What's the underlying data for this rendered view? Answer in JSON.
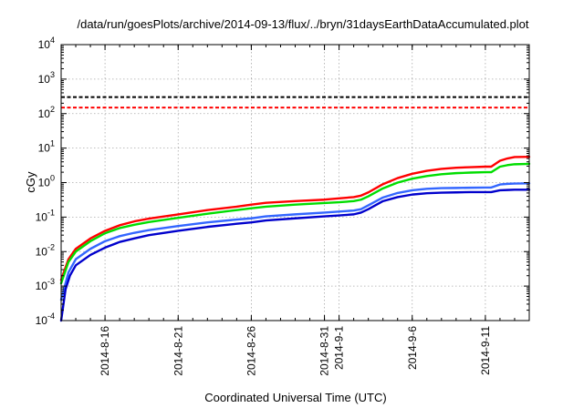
{
  "chart_data": {
    "type": "line",
    "title": "/data/run/goesPlots/archive/2014-09-13/flux/../bryn/31daysEarthDataAccumulated.plot",
    "xlabel": "Coordinated Universal Time (UTC)",
    "ylabel": "cGy",
    "yscale": "log",
    "ylim": [
      0.0001,
      10000
    ],
    "xlim": [
      "2014-08-13",
      "2014-09-14"
    ],
    "grid": true,
    "y_ticks": [
      {
        "base": "10",
        "exp": "-4",
        "value": 0.0001
      },
      {
        "base": "10",
        "exp": "-3",
        "value": 0.001
      },
      {
        "base": "10",
        "exp": "-2",
        "value": 0.01
      },
      {
        "base": "10",
        "exp": "-1",
        "value": 0.1
      },
      {
        "base": "10",
        "exp": "0",
        "value": 1
      },
      {
        "base": "10",
        "exp": "1",
        "value": 10
      },
      {
        "base": "10",
        "exp": "2",
        "value": 100
      },
      {
        "base": "10",
        "exp": "3",
        "value": 1000
      },
      {
        "base": "10",
        "exp": "4",
        "value": 10000
      }
    ],
    "x_ticks": [
      {
        "label": "2014-8-16",
        "date": "2014-08-16"
      },
      {
        "label": "2014-8-21",
        "date": "2014-08-21"
      },
      {
        "label": "2014-8-26",
        "date": "2014-08-26"
      },
      {
        "label": "2014-8-31",
        "date": "2014-08-31"
      },
      {
        "label": "2014-9-1",
        "date": "2014-09-01"
      },
      {
        "label": "2014-9-6",
        "date": "2014-09-06"
      },
      {
        "label": "2014-9-11",
        "date": "2014-09-11"
      }
    ],
    "thresholds": [
      {
        "value": 300,
        "color": "#000000",
        "style": "dashed"
      },
      {
        "value": 150,
        "color": "#ff0000",
        "style": "dashed"
      }
    ],
    "series": [
      {
        "color": "#ff0000",
        "points": [
          [
            "2014-08-13",
            0.0015
          ],
          [
            "2014-08-13.5",
            0.006
          ],
          [
            "2014-08-14",
            0.012
          ],
          [
            "2014-08-15",
            0.024
          ],
          [
            "2014-08-16",
            0.04
          ],
          [
            "2014-08-17",
            0.058
          ],
          [
            "2014-08-18",
            0.075
          ],
          [
            "2014-08-19",
            0.09
          ],
          [
            "2014-08-21",
            0.12
          ],
          [
            "2014-08-23",
            0.16
          ],
          [
            "2014-08-25",
            0.2
          ],
          [
            "2014-08-26",
            0.23
          ],
          [
            "2014-08-27",
            0.26
          ],
          [
            "2014-08-29",
            0.29
          ],
          [
            "2014-08-31",
            0.32
          ],
          [
            "2014-09-01",
            0.35
          ],
          [
            "2014-09-02",
            0.38
          ],
          [
            "2014-09-02.5",
            0.42
          ],
          [
            "2014-09-03",
            0.52
          ],
          [
            "2014-09-04",
            0.9
          ],
          [
            "2014-09-05",
            1.35
          ],
          [
            "2014-09-06",
            1.8
          ],
          [
            "2014-09-07",
            2.2
          ],
          [
            "2014-09-08",
            2.5
          ],
          [
            "2014-09-09",
            2.7
          ],
          [
            "2014-09-10",
            2.8
          ],
          [
            "2014-09-11",
            2.9
          ],
          [
            "2014-09-11.4",
            2.9
          ],
          [
            "2014-09-12",
            4.3
          ],
          [
            "2014-09-12.5",
            5.0
          ],
          [
            "2014-09-13",
            5.5
          ],
          [
            "2014-09-14",
            5.6
          ]
        ]
      },
      {
        "color": "#00dd00",
        "points": [
          [
            "2014-08-13",
            0.0012
          ],
          [
            "2014-08-13.5",
            0.005
          ],
          [
            "2014-08-14",
            0.01
          ],
          [
            "2014-08-15",
            0.02
          ],
          [
            "2014-08-16",
            0.034
          ],
          [
            "2014-08-17",
            0.048
          ],
          [
            "2014-08-18",
            0.06
          ],
          [
            "2014-08-19",
            0.072
          ],
          [
            "2014-08-21",
            0.095
          ],
          [
            "2014-08-23",
            0.125
          ],
          [
            "2014-08-25",
            0.16
          ],
          [
            "2014-08-26",
            0.18
          ],
          [
            "2014-08-27",
            0.2
          ],
          [
            "2014-08-29",
            0.23
          ],
          [
            "2014-08-31",
            0.255
          ],
          [
            "2014-09-01",
            0.27
          ],
          [
            "2014-09-02",
            0.29
          ],
          [
            "2014-09-02.5",
            0.32
          ],
          [
            "2014-09-03",
            0.4
          ],
          [
            "2014-09-04",
            0.68
          ],
          [
            "2014-09-05",
            1.0
          ],
          [
            "2014-09-06",
            1.3
          ],
          [
            "2014-09-07",
            1.55
          ],
          [
            "2014-09-08",
            1.75
          ],
          [
            "2014-09-09",
            1.88
          ],
          [
            "2014-09-10",
            1.95
          ],
          [
            "2014-09-11",
            2.0
          ],
          [
            "2014-09-11.4",
            2.0
          ],
          [
            "2014-09-12",
            2.9
          ],
          [
            "2014-09-12.5",
            3.2
          ],
          [
            "2014-09-13",
            3.4
          ],
          [
            "2014-09-14",
            3.5
          ]
        ]
      },
      {
        "color": "#3366ff",
        "points": [
          [
            "2014-08-13",
            0.0004
          ],
          [
            "2014-08-13.5",
            0.0025
          ],
          [
            "2014-08-14",
            0.006
          ],
          [
            "2014-08-15",
            0.012
          ],
          [
            "2014-08-16",
            0.02
          ],
          [
            "2014-08-17",
            0.028
          ],
          [
            "2014-08-18",
            0.035
          ],
          [
            "2014-08-19",
            0.042
          ],
          [
            "2014-08-21",
            0.055
          ],
          [
            "2014-08-23",
            0.07
          ],
          [
            "2014-08-25",
            0.085
          ],
          [
            "2014-08-26",
            0.092
          ],
          [
            "2014-08-27",
            0.105
          ],
          [
            "2014-08-29",
            0.12
          ],
          [
            "2014-08-31",
            0.135
          ],
          [
            "2014-09-01",
            0.145
          ],
          [
            "2014-09-02",
            0.155
          ],
          [
            "2014-09-02.5",
            0.17
          ],
          [
            "2014-09-03",
            0.22
          ],
          [
            "2014-09-04",
            0.37
          ],
          [
            "2014-09-05",
            0.5
          ],
          [
            "2014-09-06",
            0.6
          ],
          [
            "2014-09-07",
            0.66
          ],
          [
            "2014-09-08",
            0.69
          ],
          [
            "2014-09-09",
            0.7
          ],
          [
            "2014-09-10",
            0.71
          ],
          [
            "2014-09-11",
            0.72
          ],
          [
            "2014-09-11.4",
            0.72
          ],
          [
            "2014-09-12",
            0.88
          ],
          [
            "2014-09-12.5",
            0.92
          ],
          [
            "2014-09-13",
            0.94
          ],
          [
            "2014-09-14",
            0.95
          ]
        ]
      },
      {
        "color": "#0000cc",
        "points": [
          [
            "2014-08-13",
            0.0001
          ],
          [
            "2014-08-13.3",
            0.0008
          ],
          [
            "2014-08-13.6",
            0.002
          ],
          [
            "2014-08-14",
            0.004
          ],
          [
            "2014-08-15",
            0.008
          ],
          [
            "2014-08-16",
            0.013
          ],
          [
            "2014-08-17",
            0.019
          ],
          [
            "2014-08-18",
            0.024
          ],
          [
            "2014-08-19",
            0.03
          ],
          [
            "2014-08-21",
            0.04
          ],
          [
            "2014-08-23",
            0.052
          ],
          [
            "2014-08-25",
            0.064
          ],
          [
            "2014-08-26",
            0.07
          ],
          [
            "2014-08-27",
            0.08
          ],
          [
            "2014-08-29",
            0.092
          ],
          [
            "2014-08-31",
            0.105
          ],
          [
            "2014-09-01",
            0.112
          ],
          [
            "2014-09-02",
            0.12
          ],
          [
            "2014-09-02.5",
            0.135
          ],
          [
            "2014-09-03",
            0.17
          ],
          [
            "2014-09-04",
            0.29
          ],
          [
            "2014-09-05",
            0.38
          ],
          [
            "2014-09-06",
            0.45
          ],
          [
            "2014-09-07",
            0.49
          ],
          [
            "2014-09-08",
            0.51
          ],
          [
            "2014-09-09",
            0.52
          ],
          [
            "2014-09-10",
            0.53
          ],
          [
            "2014-09-11",
            0.53
          ],
          [
            "2014-09-11.4",
            0.53
          ],
          [
            "2014-09-12",
            0.6
          ],
          [
            "2014-09-12.5",
            0.61
          ],
          [
            "2014-09-13",
            0.62
          ],
          [
            "2014-09-14",
            0.62
          ]
        ]
      }
    ]
  }
}
